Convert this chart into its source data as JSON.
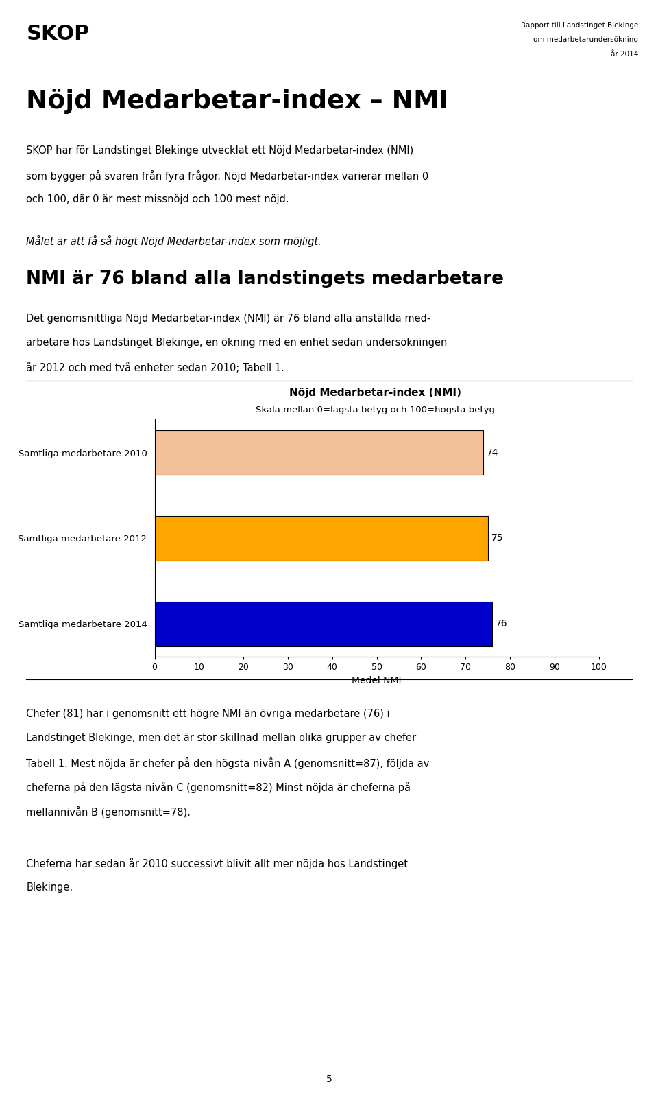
{
  "page_bg": "#ffffff",
  "header_logo": "SKOP",
  "header_right_line1": "Rapport till Landstinget Blekinge",
  "header_right_line2": "om medarbetarundersökning",
  "header_right_line3": "år 2014",
  "section1_title": "Nöjd Medarbetar-index – NMI",
  "section1_lines": [
    "SKOP har för Landstinget Blekinge utvecklat ett Nöjd Medarbetar-index (NMI)",
    "som bygger på svaren från fyra frågor. Nöjd Medarbetar-index varierar mellan 0",
    "och 100, där 0 är mest missnöjd och 100 mest nöjd."
  ],
  "section1_italic": "Målet är att få så högt Nöjd Medarbetar-index som möjligt.",
  "section2_title": "NMI är 76 bland alla landstingets medarbetare",
  "section2_lines": [
    "Det genomsnittliga Nöjd Medarbetar-index (NMI) är 76 bland alla anställda med-",
    "arbetare hos Landstinget Blekinge, en ökning med en enhet sedan undersökningen",
    "år 2012 och med två enheter sedan 2010; Tabell 1."
  ],
  "chart_title": "Nöjd Medarbetar-index (NMI)",
  "chart_subtitle": "Skala mellan 0=lägsta betyg och 100=högsta betyg",
  "categories": [
    "Samtliga medarbetare 2010",
    "Samtliga medarbetare 2012",
    "Samtliga medarbetare 2014"
  ],
  "values": [
    74,
    75,
    76
  ],
  "bar_colors": [
    "#F4C09A",
    "#FFA500",
    "#0000CC"
  ],
  "bar_edgecolors": [
    "#000000",
    "#000000",
    "#000000"
  ],
  "xlim": [
    0,
    100
  ],
  "xticks": [
    0,
    10,
    20,
    30,
    40,
    50,
    60,
    70,
    80,
    90,
    100
  ],
  "xlabel": "Medel NMI",
  "section3_lines1": [
    "Chefer (81) har i genomsnitt ett högre NMI än övriga medarbetare (76) i",
    "Landstinget Blekinge, men det är stor skillnad mellan olika grupper av chefer",
    "Tabell 1. Mest nöjda är chefer på den högsta nivån A (genomsnitt=87), följda av",
    "cheferna på den lägsta nivån C (genomsnitt=82) Minst nöjda är cheferna på",
    "mellannivån B (genomsnitt=78)."
  ],
  "section3_lines2": [
    "Cheferna har sedan år 2010 successivt blivit allt mer nöjda hos Landstinget",
    "Blekinge."
  ],
  "page_number": "5"
}
